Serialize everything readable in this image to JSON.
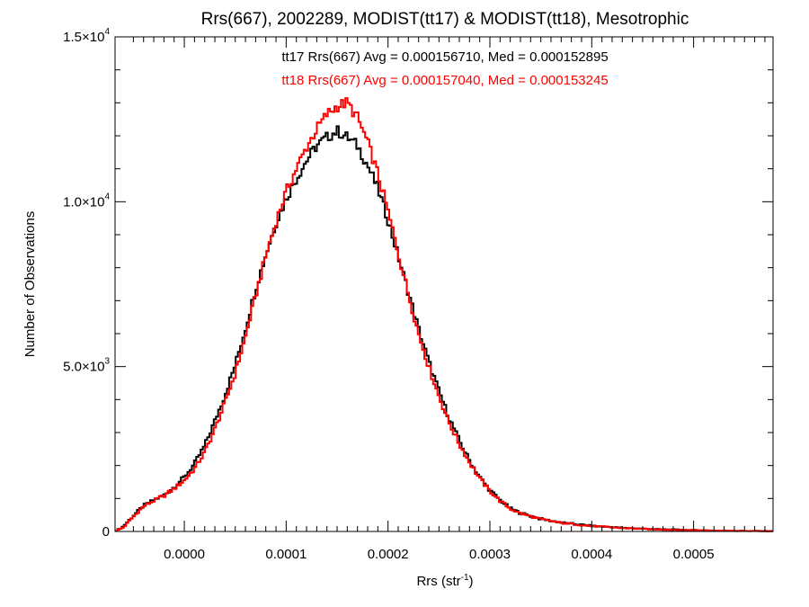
{
  "chart_data": {
    "type": "line",
    "title": "Rrs(667), 2002289, MODIST(tt17) & MODIST(tt18), Mesotrophic",
    "xlabel": {
      "base": "Rrs (str",
      "sup": "-1",
      "tail": ")"
    },
    "ylabel": "Number of Observations",
    "xlim": [
      -6.8e-05,
      0.000578
    ],
    "ylim": [
      0,
      15000
    ],
    "xticks": [
      {
        "value": 0.0,
        "label": "0.0000"
      },
      {
        "value": 0.0001,
        "label": "0.0001"
      },
      {
        "value": 0.0002,
        "label": "0.0002"
      },
      {
        "value": 0.0003,
        "label": "0.0003"
      },
      {
        "value": 0.0004,
        "label": "0.0004"
      },
      {
        "value": 0.0005,
        "label": "0.0005"
      }
    ],
    "yticks": [
      {
        "value": 0,
        "mant": "0",
        "exp": ""
      },
      {
        "value": 5000,
        "mant": "5.0×10",
        "exp": "3"
      },
      {
        "value": 10000,
        "mant": "1.0×10",
        "exp": "4"
      },
      {
        "value": 15000,
        "mant": "1.5×10",
        "exp": "4"
      }
    ],
    "annotations": [
      {
        "text": "tt17 Rrs(667) Avg = 0.000156710, Med = 0.000152895",
        "color": "#000000"
      },
      {
        "text": "tt18 Rrs(667) Avg = 0.000157040, Med = 0.000153245",
        "color": "#ff0000"
      }
    ],
    "series": [
      {
        "key": "tt17",
        "color": "#000000",
        "x": [
          -6.8e-05,
          -6e-05,
          -5e-05,
          -4e-05,
          -3e-05,
          -2e-05,
          -1e-05,
          0.0,
          1e-05,
          2e-05,
          3e-05,
          4e-05,
          5e-05,
          6e-05,
          7e-05,
          8e-05,
          9e-05,
          0.0001,
          0.00011,
          0.00012,
          0.00013,
          0.00014,
          0.00015,
          0.00016,
          0.00017,
          0.00018,
          0.00019,
          0.0002,
          0.00021,
          0.00022,
          0.00023,
          0.00024,
          0.00025,
          0.00026,
          0.00027,
          0.00028,
          0.00029,
          0.0003,
          0.00031,
          0.00032,
          0.00033,
          0.00035,
          0.00037,
          0.0004,
          0.00043,
          0.00046,
          0.0005,
          0.00054,
          0.000578
        ],
        "y": [
          0,
          150,
          480,
          780,
          950,
          1100,
          1350,
          1650,
          2050,
          2600,
          3350,
          4150,
          5050,
          6150,
          7350,
          8400,
          9350,
          10100,
          10700,
          11250,
          11700,
          11950,
          12150,
          11950,
          11700,
          11100,
          10400,
          9450,
          8350,
          7250,
          6150,
          5150,
          4250,
          3450,
          2750,
          2150,
          1650,
          1250,
          950,
          700,
          560,
          380,
          270,
          170,
          110,
          70,
          40,
          20,
          10
        ]
      },
      {
        "key": "tt18",
        "color": "#ff0000",
        "x": [
          -6.8e-05,
          -6e-05,
          -5e-05,
          -4e-05,
          -3e-05,
          -2e-05,
          -1e-05,
          0.0,
          1e-05,
          2e-05,
          3e-05,
          4e-05,
          5e-05,
          6e-05,
          7e-05,
          8e-05,
          9e-05,
          0.0001,
          0.00011,
          0.00012,
          0.00013,
          0.00014,
          0.00015,
          0.00016,
          0.00017,
          0.00018,
          0.00019,
          0.0002,
          0.00021,
          0.00022,
          0.00023,
          0.00024,
          0.00025,
          0.00026,
          0.00027,
          0.00028,
          0.00029,
          0.0003,
          0.00031,
          0.00032,
          0.00033,
          0.00035,
          0.00037,
          0.0004,
          0.00043,
          0.00046,
          0.0005,
          0.00054,
          0.000578
        ],
        "y": [
          0,
          120,
          450,
          760,
          930,
          1080,
          1300,
          1550,
          1900,
          2400,
          3100,
          3900,
          4800,
          5900,
          7150,
          8350,
          9400,
          10300,
          11000,
          11650,
          12200,
          12650,
          12900,
          13000,
          12550,
          11800,
          10850,
          9700,
          8450,
          7200,
          6000,
          5000,
          4100,
          3300,
          2650,
          2100,
          1600,
          1230,
          930,
          690,
          550,
          370,
          260,
          165,
          105,
          65,
          38,
          18,
          8
        ]
      }
    ],
    "grid": false,
    "legend": "none"
  }
}
